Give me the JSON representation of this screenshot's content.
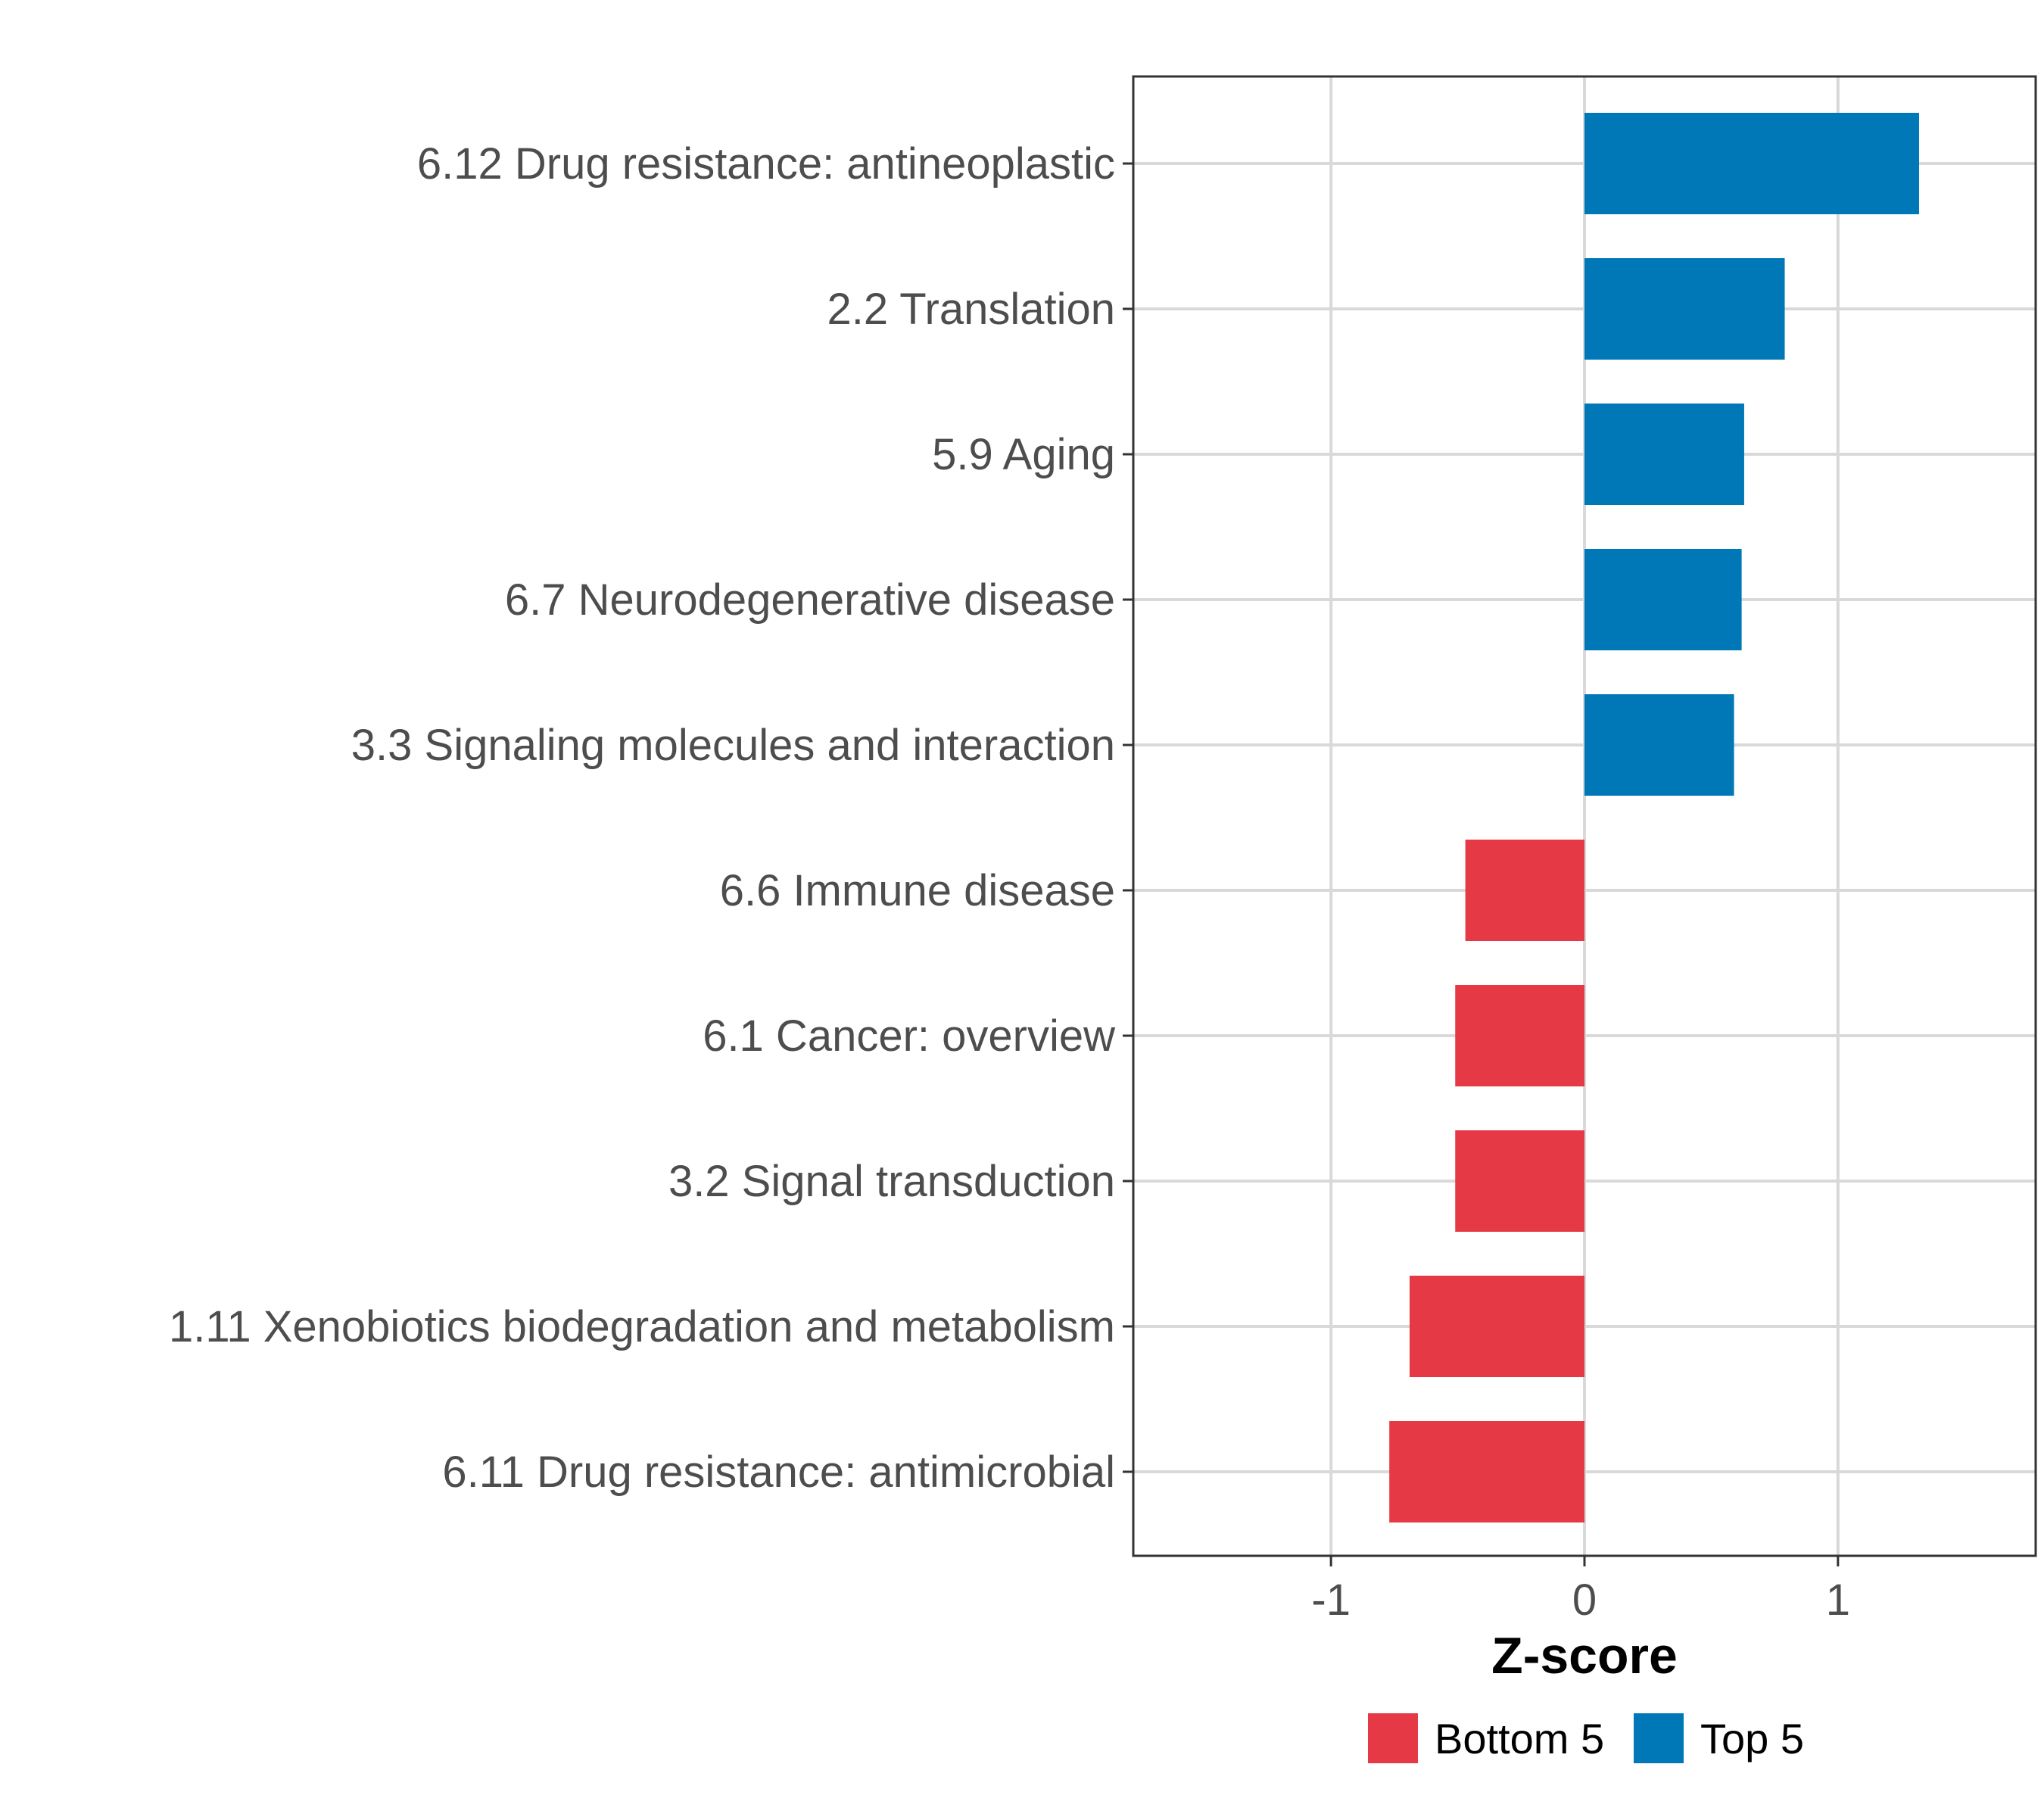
{
  "chart_data": {
    "type": "bar",
    "orientation": "horizontal",
    "title": "",
    "xlabel": "Z-score",
    "ylabel": "",
    "xlim": [
      -1.78,
      1.78
    ],
    "xticks": [
      -1,
      0,
      1
    ],
    "xtick_labels": [
      "-1",
      "0",
      "1"
    ],
    "grid": true,
    "categories": [
      "6.12 Drug resistance: antineoplastic",
      "2.2 Translation",
      "5.9 Aging",
      "6.7 Neurodegenerative disease",
      "3.3 Signaling molecules and interaction",
      "6.6 Immune disease",
      "6.1 Cancer: overview",
      "3.2 Signal transduction",
      "1.11 Xenobiotics biodegradation and metabolism",
      "6.11 Drug resistance: antimicrobial"
    ],
    "values": [
      1.32,
      0.79,
      0.63,
      0.62,
      0.59,
      -0.47,
      -0.51,
      -0.51,
      -0.69,
      -0.77
    ],
    "groups": [
      "Top 5",
      "Top 5",
      "Top 5",
      "Top 5",
      "Top 5",
      "Bottom 5",
      "Bottom 5",
      "Bottom 5",
      "Bottom 5",
      "Bottom 5"
    ],
    "legend": {
      "position": "bottom",
      "entries": [
        {
          "label": "Bottom 5",
          "color": "#e63946"
        },
        {
          "label": "Top 5",
          "color": "#0077b6"
        }
      ]
    }
  }
}
